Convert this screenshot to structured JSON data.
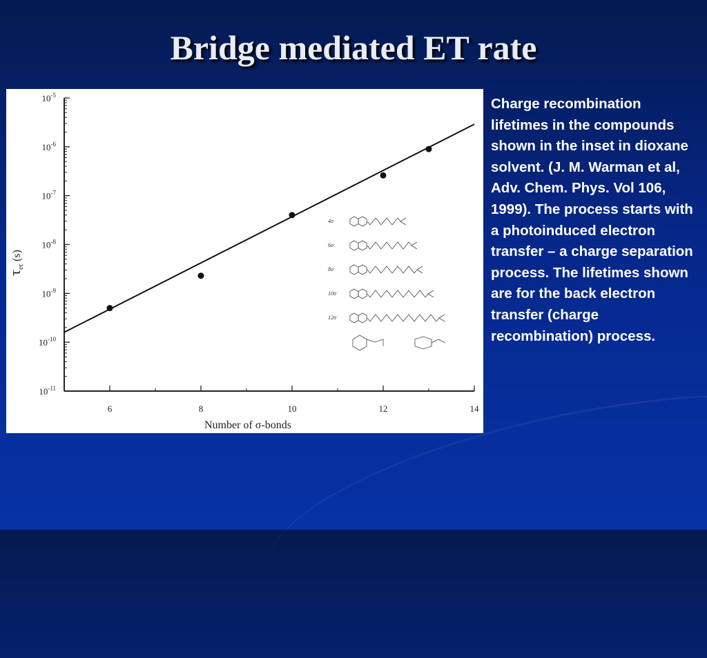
{
  "slide": {
    "title": "Bridge mediated ET rate",
    "caption": "Charge recombination lifetimes in the compounds shown in the inset in dioxane solvent. (J. M. Warman et al, Adv. Chem. Phys. Vol 106, 1999). The process starts with a photoinduced electron transfer – a charge separation process. The lifetimes shown are for the back electron transfer (charge recombination) process."
  },
  "chart_data": {
    "type": "scatter",
    "title": "",
    "xlabel": "Number of σ-bonds",
    "ylabel": "τet (s)",
    "y_scale": "log",
    "xlim": [
      5,
      14
    ],
    "ylim": [
      1e-11,
      1e-05
    ],
    "x_ticks": [
      6,
      8,
      10,
      12,
      14
    ],
    "y_ticks": [
      {
        "value": 1e-05,
        "label_base": "10",
        "label_exp": "-5"
      },
      {
        "value": 1e-06,
        "label_base": "10",
        "label_exp": "-6"
      },
      {
        "value": 1e-07,
        "label_base": "10",
        "label_exp": "-7"
      },
      {
        "value": 1e-08,
        "label_base": "10",
        "label_exp": "-8"
      },
      {
        "value": 1e-09,
        "label_base": "10",
        "label_exp": "-9"
      },
      {
        "value": 1e-10,
        "label_base": "10",
        "label_exp": "-10"
      },
      {
        "value": 1e-11,
        "label_base": "10",
        "label_exp": "-11"
      }
    ],
    "series": [
      {
        "points": [
          {
            "x": 6,
            "y": 5e-10
          },
          {
            "x": 8,
            "y": 2.3e-09
          },
          {
            "x": 10,
            "y": 4e-08
          },
          {
            "x": 12,
            "y": 2.6e-07
          },
          {
            "x": 13,
            "y": 9e-07
          }
        ]
      }
    ],
    "fit_line": {
      "x": [
        5,
        14
      ],
      "y": [
        1.6e-10,
        2.9e-06
      ]
    },
    "inset_labels": [
      "4σ",
      "6σ",
      "8σ",
      "10σ",
      "12σ"
    ],
    "grid": false,
    "legend": "none"
  }
}
